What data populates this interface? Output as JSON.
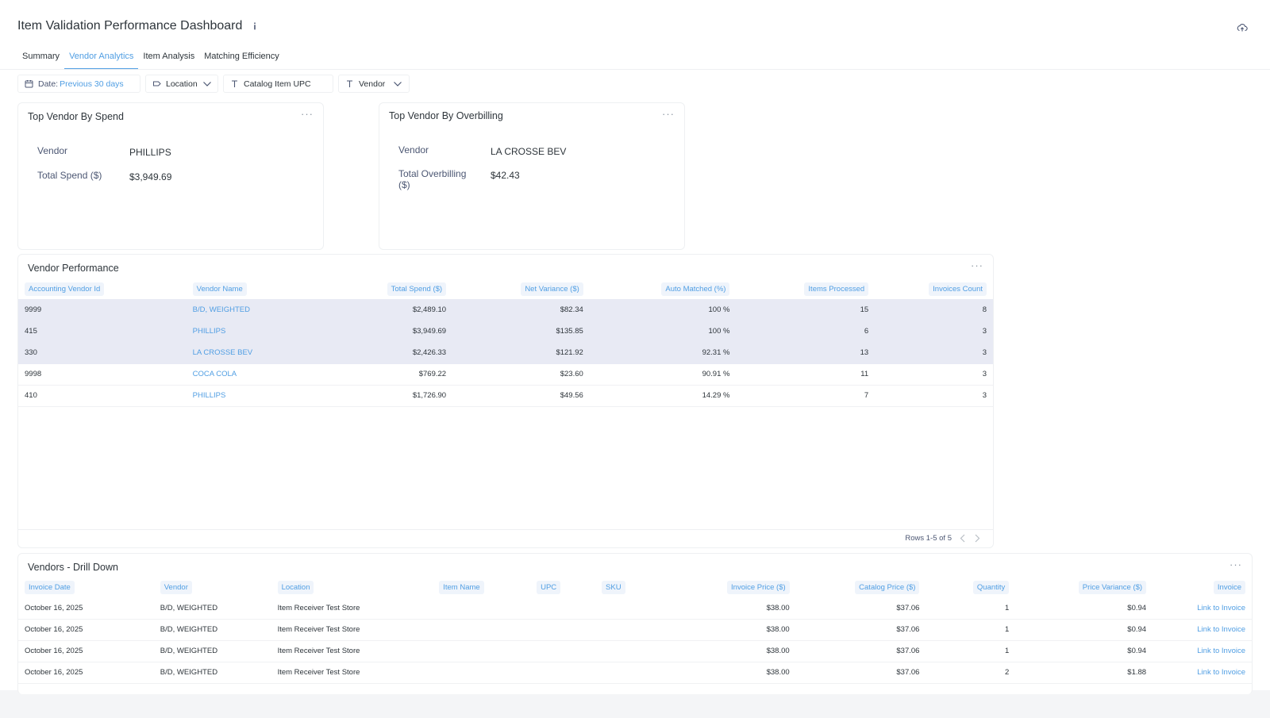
{
  "header": {
    "title": "Item Validation Performance Dashboard",
    "info_icon": "info-icon",
    "upload_icon": "cloud-upload-icon"
  },
  "tabs": [
    {
      "label": "Summary",
      "active": false
    },
    {
      "label": "Vendor Analytics",
      "active": true
    },
    {
      "label": "Item Analysis",
      "active": false
    },
    {
      "label": "Matching Efficiency",
      "active": false
    }
  ],
  "filters": {
    "date_prefix": "Date:",
    "date_value": "Previous 30 days",
    "location": "Location",
    "catalog_upc": "Catalog Item UPC",
    "vendor": "Vendor"
  },
  "top_spend": {
    "title": "Top Vendor By Spend",
    "vendor_label": "Vendor",
    "vendor_value": "PHILLIPS",
    "spend_label": "Total Spend ($)",
    "spend_value": "$3,949.69"
  },
  "top_overbilling": {
    "title": "Top Vendor By Overbilling",
    "vendor_label": "Vendor",
    "vendor_value": "LA CROSSE BEV",
    "over_label_line1": "Total Overbilling",
    "over_label_line2": "($)",
    "over_value": "$42.43"
  },
  "vendor_performance": {
    "title": "Vendor Performance",
    "columns": [
      "Accounting Vendor Id",
      "Vendor Name",
      "Total Spend ($)",
      "Net Variance ($)",
      "Auto Matched (%)",
      "Items Processed",
      "Invoices Count"
    ],
    "rows": [
      {
        "id": "9999",
        "name": "B/D, WEIGHTED",
        "spend": "$2,489.10",
        "variance": "$82.34",
        "auto": "100 %",
        "items": "15",
        "invoices": "8",
        "highlight": true
      },
      {
        "id": "415",
        "name": "PHILLIPS",
        "spend": "$3,949.69",
        "variance": "$135.85",
        "auto": "100 %",
        "items": "6",
        "invoices": "3",
        "highlight": true
      },
      {
        "id": "330",
        "name": "LA CROSSE BEV",
        "spend": "$2,426.33",
        "variance": "$121.92",
        "auto": "92.31 %",
        "items": "13",
        "invoices": "3",
        "highlight": true
      },
      {
        "id": "9998",
        "name": "COCA COLA",
        "spend": "$769.22",
        "variance": "$23.60",
        "auto": "90.91 %",
        "items": "11",
        "invoices": "3",
        "highlight": false
      },
      {
        "id": "410",
        "name": "PHILLIPS",
        "spend": "$1,726.90",
        "variance": "$49.56",
        "auto": "14.29 %",
        "items": "7",
        "invoices": "3",
        "highlight": false
      }
    ],
    "pager_text": "Rows 1-5 of 5"
  },
  "drill_down": {
    "title": "Vendors - Drill Down",
    "columns": [
      "Invoice Date",
      "Vendor",
      "Location",
      "Item Name",
      "UPC",
      "SKU",
      "Invoice Price ($)",
      "Catalog Price ($)",
      "Quantity",
      "Price Variance ($)",
      "Invoice"
    ],
    "rows": [
      {
        "date": "October 16, 2025",
        "vendor": "B/D, WEIGHTED",
        "location": "Item Receiver Test Store",
        "item": "",
        "upc": "",
        "sku": "",
        "invoice_price": "$38.00",
        "catalog_price": "$37.06",
        "qty": "1",
        "variance": "$0.94",
        "link": "Link to Invoice"
      },
      {
        "date": "October 16, 2025",
        "vendor": "B/D, WEIGHTED",
        "location": "Item Receiver Test Store",
        "item": "",
        "upc": "",
        "sku": "",
        "invoice_price": "$38.00",
        "catalog_price": "$37.06",
        "qty": "1",
        "variance": "$0.94",
        "link": "Link to Invoice"
      },
      {
        "date": "October 16, 2025",
        "vendor": "B/D, WEIGHTED",
        "location": "Item Receiver Test Store",
        "item": "",
        "upc": "",
        "sku": "",
        "invoice_price": "$38.00",
        "catalog_price": "$37.06",
        "qty": "1",
        "variance": "$0.94",
        "link": "Link to Invoice"
      },
      {
        "date": "October 16, 2025",
        "vendor": "B/D, WEIGHTED",
        "location": "Item Receiver Test Store",
        "item": "",
        "upc": "",
        "sku": "",
        "invoice_price": "$38.00",
        "catalog_price": "$37.06",
        "qty": "2",
        "variance": "$1.88",
        "link": "Link to Invoice"
      }
    ]
  },
  "colors": {
    "accent": "#509ee3",
    "highlight_row": "#e8eaf4",
    "text": "#2e353b"
  }
}
